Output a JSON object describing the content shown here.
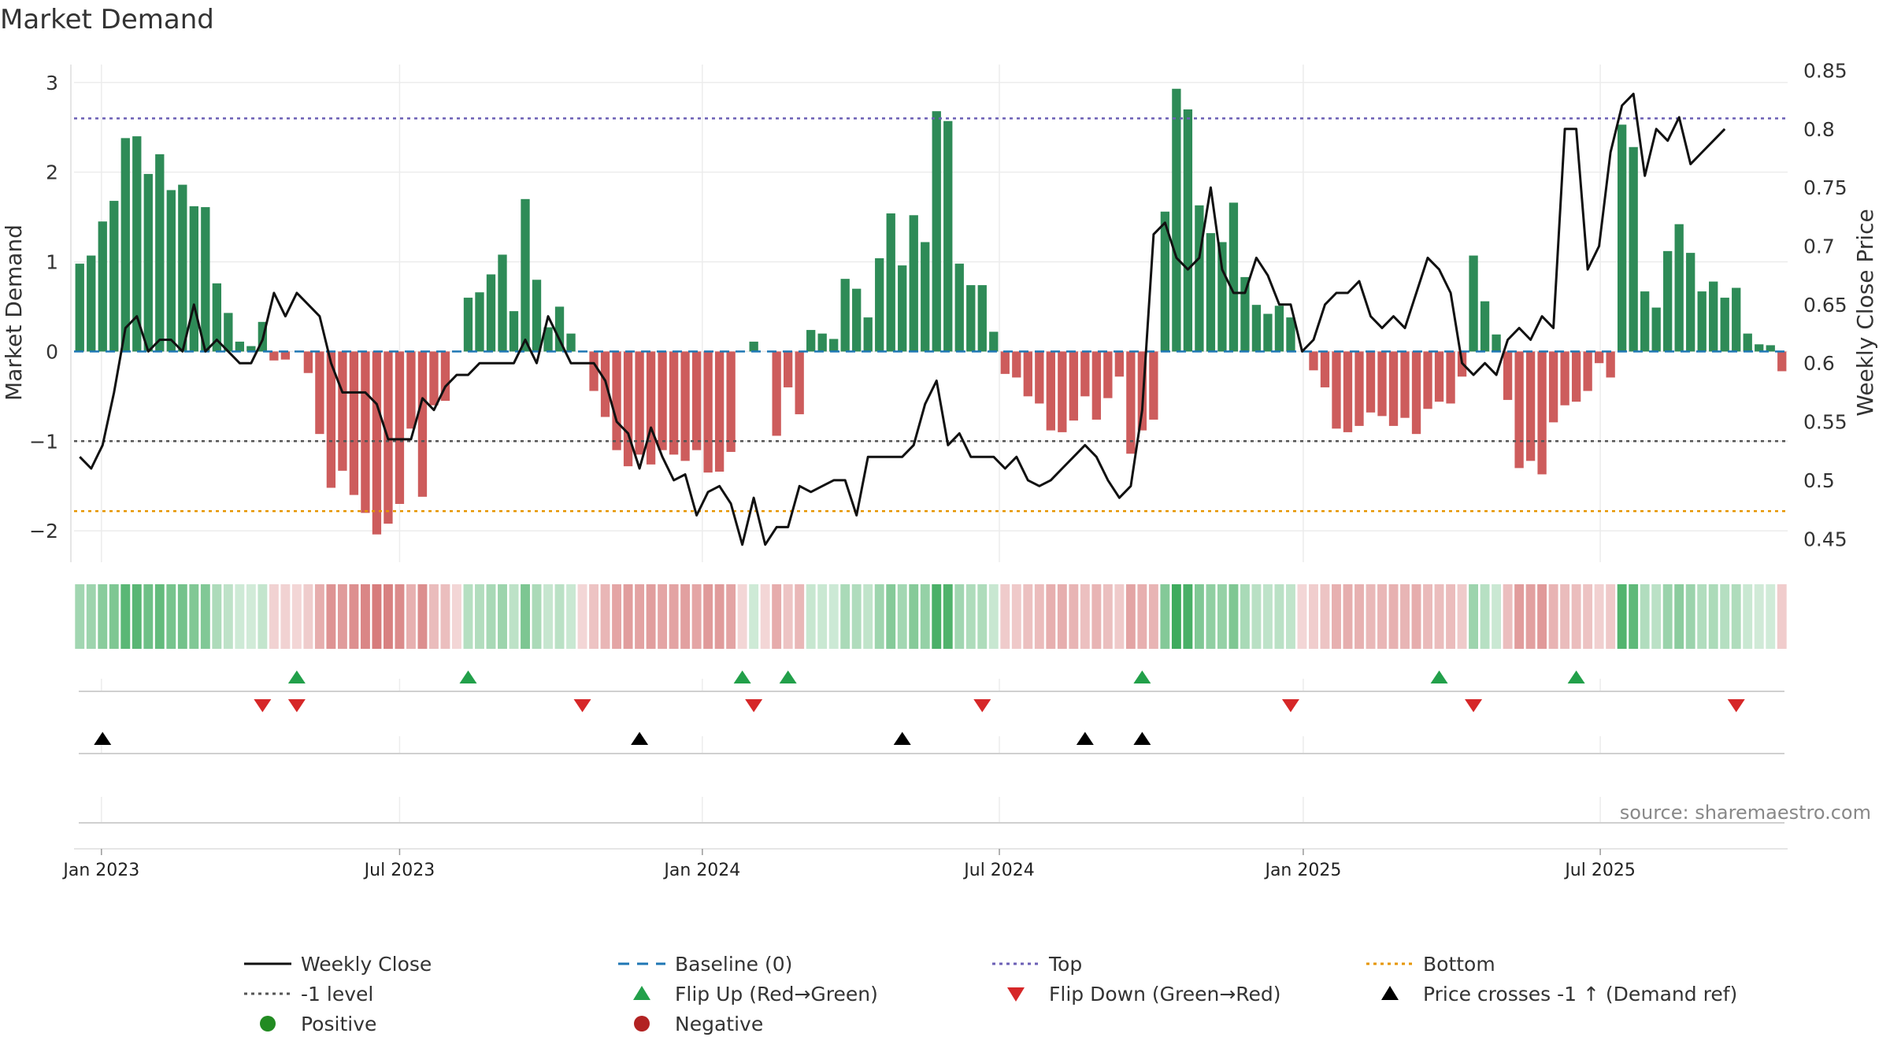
{
  "chart_data": {
    "type": "bar",
    "title": "Market Demand",
    "ylabel": "Market Demand",
    "y2label": "Weekly Close Price",
    "source": "source: sharemaestro.com",
    "ylim": [
      -2.35,
      3.2
    ],
    "y2lim": [
      0.43,
      0.855
    ],
    "yticks": [
      -2,
      -1,
      0,
      1,
      2,
      3
    ],
    "y2ticks": [
      0.45,
      0.5,
      0.55,
      0.6,
      0.65,
      0.7,
      0.75,
      0.8,
      0.85
    ],
    "y2tick_labels": [
      "0.45",
      "0.5",
      "0.55",
      "0.6",
      "0.65",
      "0.7",
      "0.75",
      "0.8",
      "0.85"
    ],
    "top_level": 2.6,
    "minus_one_level": -1,
    "bottom_level": -1.78,
    "x_ticks": [
      {
        "week": 2.4,
        "label": "Jan 2023"
      },
      {
        "week": 28.5,
        "label": "Jul 2023"
      },
      {
        "week": 55,
        "label": "Jan 2024"
      },
      {
        "week": 81,
        "label": "Jul 2024"
      },
      {
        "week": 107.6,
        "label": "Jan 2025"
      },
      {
        "week": 133.6,
        "label": "Jul 2025"
      }
    ],
    "demand_values": [
      0.98,
      1.07,
      1.45,
      1.68,
      2.38,
      2.4,
      1.98,
      2.2,
      1.8,
      1.86,
      1.62,
      1.61,
      0.76,
      0.43,
      0.11,
      0.06,
      0.33,
      -0.1,
      -0.09,
      0,
      -0.24,
      -0.92,
      -1.52,
      -1.33,
      -1.6,
      -1.8,
      -2.04,
      -1.92,
      -1.7,
      -0.86,
      -1.62,
      -0.6,
      -0.55,
      0,
      0.6,
      0.66,
      0.86,
      1.08,
      0.45,
      1.7,
      0.8,
      0.27,
      0.5,
      0.2,
      0,
      -0.44,
      -0.73,
      -1.1,
      -1.28,
      -1.15,
      -1.26,
      -1.1,
      -1.15,
      -1.22,
      -1.1,
      -1.35,
      -1.34,
      -1.12,
      0,
      0.11,
      0,
      -0.94,
      -0.4,
      -0.7,
      0.24,
      0.2,
      0.14,
      0.81,
      0.7,
      0.38,
      1.04,
      1.54,
      0.96,
      1.52,
      1.22,
      2.68,
      2.57,
      0.98,
      0.74,
      0.74,
      0.22,
      -0.25,
      -0.29,
      -0.5,
      -0.58,
      -0.88,
      -0.9,
      -0.77,
      -0.5,
      -0.76,
      -0.52,
      -0.28,
      -1.14,
      -0.88,
      -0.76,
      1.56,
      2.93,
      2.7,
      1.63,
      1.32,
      1.22,
      1.66,
      0.83,
      0.52,
      0.42,
      0.51,
      0.38,
      0,
      -0.21,
      -0.4,
      -0.86,
      -0.9,
      -0.83,
      -0.68,
      -0.72,
      -0.83,
      -0.74,
      -0.92,
      -0.64,
      -0.56,
      -0.58,
      -0.28,
      1.07,
      0.56,
      0.19,
      -0.54,
      -1.3,
      -1.22,
      -1.37,
      -0.79,
      -0.6,
      -0.56,
      -0.44,
      -0.13,
      -0.29,
      2.53,
      2.28,
      0.67,
      0.49,
      1.12,
      1.42,
      1.1,
      0.67,
      0.78,
      0.6,
      0.71,
      0.2,
      0.08,
      0.07,
      -0.22
    ],
    "price_values": [
      0.52,
      0.51,
      0.53,
      0.575,
      0.63,
      0.64,
      0.61,
      0.62,
      0.62,
      0.61,
      0.65,
      0.61,
      0.62,
      0.61,
      0.6,
      0.6,
      0.62,
      0.66,
      0.64,
      0.66,
      0.65,
      0.64,
      0.6,
      0.575,
      0.575,
      0.575,
      0.565,
      0.535,
      0.535,
      0.535,
      0.57,
      0.56,
      0.58,
      0.59,
      0.59,
      0.6,
      0.6,
      0.6,
      0.6,
      0.62,
      0.6,
      0.64,
      0.62,
      0.6,
      0.6,
      0.6,
      0.585,
      0.55,
      0.54,
      0.51,
      0.545,
      0.52,
      0.5,
      0.505,
      0.47,
      0.49,
      0.495,
      0.48,
      0.445,
      0.485,
      0.445,
      0.46,
      0.46,
      0.495,
      0.49,
      0.495,
      0.5,
      0.5,
      0.47,
      0.52,
      0.52,
      0.52,
      0.52,
      0.53,
      0.565,
      0.585,
      0.53,
      0.54,
      0.52,
      0.52,
      0.52,
      0.51,
      0.52,
      0.5,
      0.495,
      0.5,
      0.51,
      0.52,
      0.53,
      0.52,
      0.5,
      0.485,
      0.495,
      0.56,
      0.71,
      0.72,
      0.69,
      0.68,
      0.69,
      0.75,
      0.68,
      0.66,
      0.66,
      0.69,
      0.675,
      0.65,
      0.65,
      0.61,
      0.62,
      0.65,
      0.66,
      0.66,
      0.67,
      0.64,
      0.63,
      0.64,
      0.63,
      0.66,
      0.69,
      0.68,
      0.66,
      0.6,
      0.59,
      0.6,
      0.59,
      0.62,
      0.63,
      0.62,
      0.64,
      0.63,
      0.8,
      0.8,
      0.68,
      0.7,
      0.78,
      0.82,
      0.83,
      0.76,
      0.8,
      0.79,
      0.81,
      0.77,
      0.78,
      0.79,
      0.8
    ],
    "flip_up_weeks": [
      19,
      34,
      58,
      62,
      93,
      119,
      131
    ],
    "flip_down_weeks": [
      16,
      19,
      44,
      59,
      79,
      106,
      122,
      145
    ],
    "cross_weeks": [
      2,
      49,
      72,
      88,
      93
    ],
    "legend": [
      {
        "label": "Weekly Close",
        "kind": "line"
      },
      {
        "label": "Baseline (0)",
        "kind": "dashed"
      },
      {
        "label": "Top",
        "kind": "dotted-purple"
      },
      {
        "label": "Bottom",
        "kind": "dotted-orange"
      },
      {
        "label": "-1 level",
        "kind": "dotted-gray"
      },
      {
        "label": "Flip Up (Red→Green)",
        "kind": "tri-up-green"
      },
      {
        "label": "Flip Down (Green→Red)",
        "kind": "tri-down-red"
      },
      {
        "label": "Price crosses -1 ↑ (Demand ref)",
        "kind": "tri-up-black"
      },
      {
        "label": "Positive",
        "kind": "dot-green"
      },
      {
        "label": "Negative",
        "kind": "dot-red"
      }
    ],
    "colors": {
      "positive": "#2e8b57",
      "negative": "#cd5c5c",
      "price": "#111111",
      "baseline": "#1f77b4",
      "top": "#6b5fb5",
      "bottom": "#e69500",
      "minus_one": "#555555",
      "flip_up": "#22a04a",
      "flip_down": "#d62728",
      "cross": "#000000",
      "positive_dot": "#228b22",
      "negative_dot": "#b22222"
    }
  }
}
